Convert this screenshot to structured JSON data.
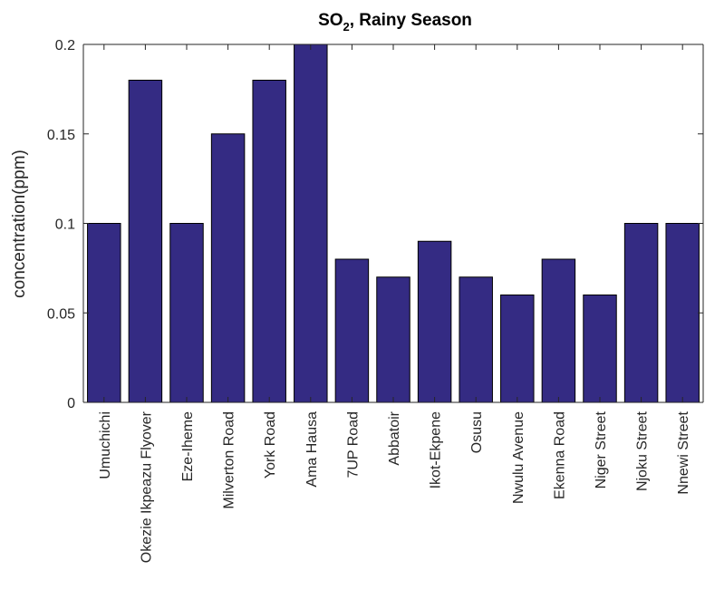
{
  "chart_data": {
    "type": "bar",
    "title": "SO2, Rainy Season",
    "title_parts": {
      "main": "SO",
      "sub": "2",
      "rest": ", Rainy Season"
    },
    "xlabel": "",
    "ylabel": "concentration(ppm)",
    "ylim": [
      0,
      0.2
    ],
    "yticks": [
      0,
      0.05,
      0.1,
      0.15,
      0.2
    ],
    "ytick_labels": [
      "0",
      "0.05",
      "0.1",
      "0.15",
      "0.2"
    ],
    "categories": [
      "Umuchichi",
      "Okezie Ikpeazu Flyover",
      "Eze-Iheme",
      "Milverton Road",
      "York Road",
      "Ama Hausa",
      "7UP Road",
      "Abbatoir",
      "Ikot-Ekpene",
      "Osusu",
      "Nwulu Avenue",
      "Ekenna Road",
      "Niger Street",
      "Njoku Street",
      "Nnewi Street"
    ],
    "values": [
      0.1,
      0.18,
      0.1,
      0.15,
      0.18,
      0.2,
      0.08,
      0.07,
      0.09,
      0.07,
      0.06,
      0.08,
      0.06,
      0.1,
      0.1
    ],
    "bar_color": "#342b83",
    "grid": false,
    "legend": "none"
  }
}
